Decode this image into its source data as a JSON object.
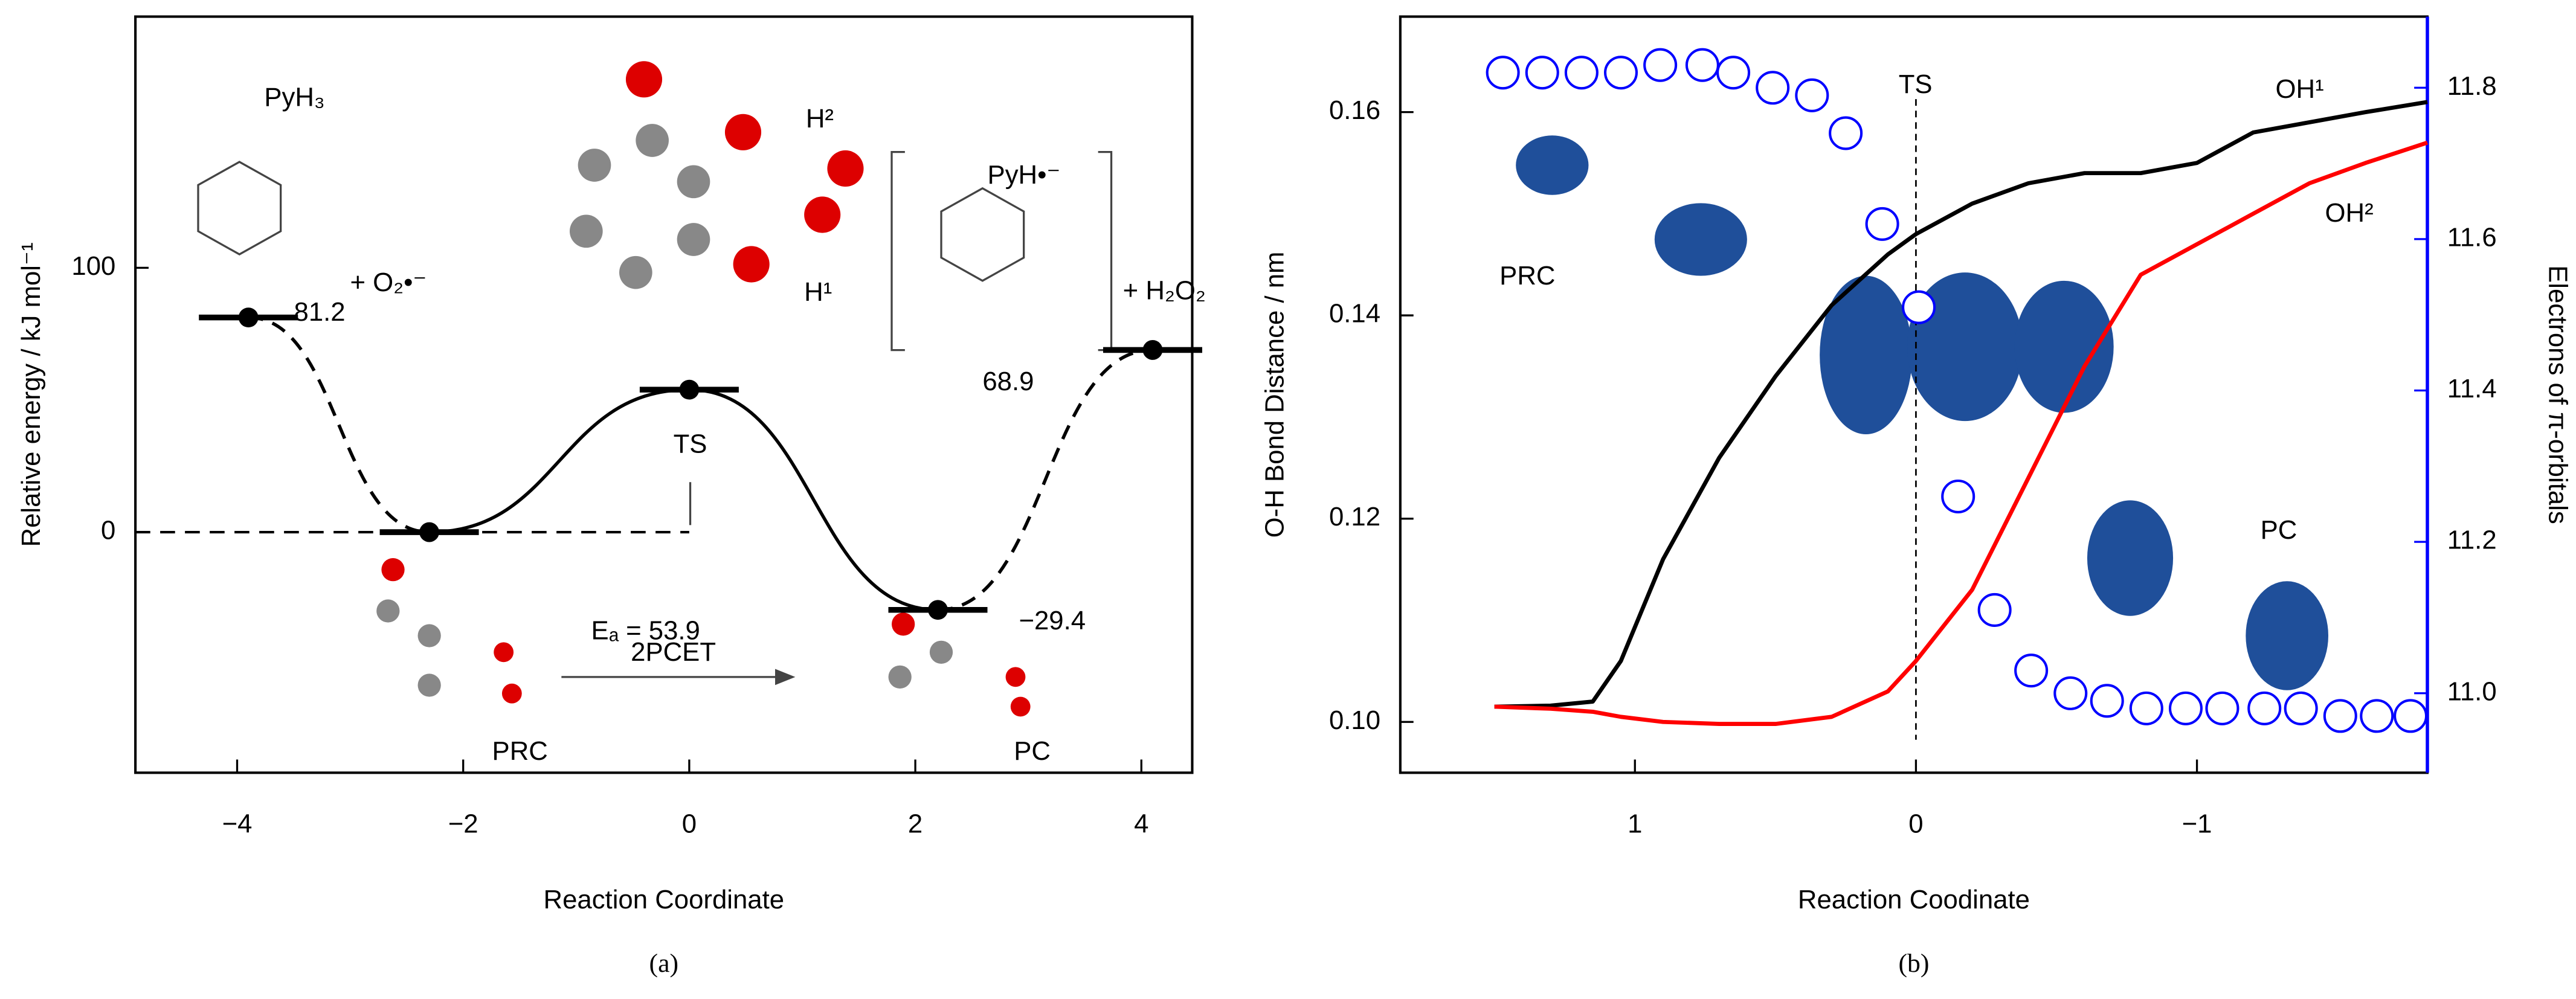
{
  "chart_data": [
    {
      "type": "line",
      "panel_label": "(a)",
      "xlabel": "Reaction Coordinate",
      "ylabel": "Relative energy / kJ mol⁻¹",
      "x": [
        -3.9,
        -2.3,
        0,
        2.2,
        4.1
      ],
      "values": [
        81.2,
        0,
        53.9,
        -29.4,
        68.9
      ],
      "value_labels": [
        "81.2",
        null,
        null,
        "−29.4",
        "68.9"
      ],
      "segment_styles": [
        "dashed",
        "solid",
        "solid",
        "dashed"
      ],
      "color": "#000000",
      "xlim": [
        -4.9,
        4.45
      ],
      "ylim": [
        -91,
        195
      ],
      "xticks": [
        {
          "value": -4,
          "label": "−4"
        },
        {
          "value": -2,
          "label": "−2"
        },
        0,
        2,
        4
      ],
      "yticks": [
        0,
        100
      ],
      "annotations": [
        "PyH₃",
        "+ O₂•⁻",
        "TS",
        "Eₐ = 53.9",
        "PyH•⁻",
        "+ H₂O₂",
        "H²",
        "H¹",
        "PRC",
        "2PCET",
        "PC"
      ]
    },
    {
      "type": "line",
      "panel_label": "(b)",
      "xlabel": "Reaction Coodinate",
      "ylabel": "O-H Bond Distance / nm",
      "y2label": "Electrons of π-orbitals",
      "y2color": "#0000ff",
      "xlim": [
        1.835,
        -1.82
      ],
      "ylim": [
        0.095,
        0.1694
      ],
      "y2lim": [
        10.895,
        11.894
      ],
      "xticks": [
        1,
        0,
        {
          "value": -1,
          "label": "−1"
        }
      ],
      "yticks": [
        {
          "value": 0.1,
          "label": "0.10"
        },
        0.12,
        0.14,
        0.16
      ],
      "y2ticks": [
        {
          "value": 11,
          "label": "11.0"
        },
        11.2,
        11.4,
        11.6,
        11.8
      ],
      "x": [
        1.5,
        1.3,
        1.15,
        1.05,
        0.9,
        0.7,
        0.5,
        0.3,
        0.1,
        0,
        -0.2,
        -0.4,
        -0.6,
        -0.8,
        -1.0,
        -1.2,
        -1.4,
        -1.6,
        -1.82
      ],
      "series": [
        {
          "name": "OH¹",
          "color": "#000000",
          "values": [
            0.1015,
            0.1016,
            0.102,
            0.106,
            0.116,
            0.126,
            0.134,
            0.141,
            0.146,
            0.148,
            0.151,
            0.153,
            0.154,
            0.154,
            0.155,
            0.158,
            0.159,
            0.16,
            0.161
          ]
        },
        {
          "name": "OH²",
          "color": "#ff0000",
          "values": [
            0.1015,
            0.1013,
            0.101,
            0.1005,
            0.1,
            0.0998,
            0.0998,
            0.1005,
            0.103,
            0.106,
            0.113,
            0.124,
            0.135,
            0.144,
            0.147,
            0.15,
            0.153,
            0.155,
            0.157
          ]
        }
      ],
      "circles": {
        "color": "#0000ff",
        "axis": "y2",
        "x": [
          1.47,
          1.33,
          1.19,
          1.05,
          0.91,
          0.76,
          0.65,
          0.51,
          0.37,
          0.25,
          0.12,
          -0.01,
          -0.15,
          -0.28,
          -0.41,
          -0.55,
          -0.68,
          -0.82,
          -0.96,
          -1.09,
          -1.24,
          -1.37,
          -1.51,
          -1.64,
          -1.76
        ],
        "values": [
          11.82,
          11.82,
          11.82,
          11.82,
          11.83,
          11.83,
          11.82,
          11.8,
          11.79,
          11.74,
          11.62,
          11.51,
          11.26,
          11.11,
          11.03,
          11.0,
          10.99,
          10.98,
          10.98,
          10.98,
          10.98,
          10.98,
          10.97,
          10.97,
          10.97
        ]
      },
      "annotations": [
        "TS",
        "PRC",
        "PC"
      ]
    }
  ]
}
